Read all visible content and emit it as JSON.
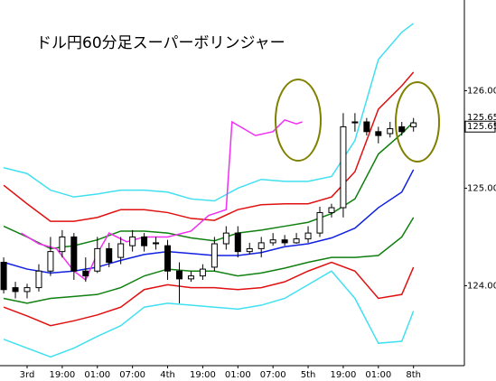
{
  "chart_data": {
    "type": "candlestick",
    "title": "ドル円60分足スーパーボリンジャー",
    "xlim": [
      -4.63,
      74.69
    ],
    "ylim": [
      123.18,
      126.93
    ],
    "xticks": [
      {
        "value": 0,
        "label": "3rd"
      },
      {
        "value": 6,
        "label": "19:00"
      },
      {
        "value": 12,
        "label": "01:00"
      },
      {
        "value": 18,
        "label": "07:00"
      },
      {
        "value": 24,
        "label": "4th"
      },
      {
        "value": 30,
        "label": "19:00"
      },
      {
        "value": 36,
        "label": "01:00"
      },
      {
        "value": 42,
        "label": "07:00"
      },
      {
        "value": 48,
        "label": "5th"
      },
      {
        "value": 54,
        "label": "19:00"
      },
      {
        "value": 60,
        "label": "01:00"
      },
      {
        "value": 66,
        "label": "8th"
      }
    ],
    "yticks": [
      {
        "value": 124,
        "label": "124.00"
      },
      {
        "value": 125,
        "label": "125.00"
      },
      {
        "value": 126,
        "label": "126.00"
      }
    ],
    "price_labels": [
      {
        "value": 125.651,
        "label": "125.651",
        "color": "#e030e0"
      },
      {
        "value": 125.65,
        "label": "125.65",
        "color": "#000000"
      }
    ],
    "candles": {
      "x": [
        -4,
        -2,
        0,
        2,
        4,
        6,
        8,
        10,
        12,
        14,
        16,
        18,
        20,
        22,
        24,
        26,
        28,
        30,
        32,
        34,
        36,
        38,
        40,
        42,
        44,
        46,
        48,
        50,
        52,
        54,
        56,
        58,
        60,
        62,
        64,
        66
      ],
      "open": [
        124.24,
        123.98,
        123.94,
        123.98,
        124.15,
        124.35,
        124.5,
        124.15,
        124.15,
        124.38,
        124.29,
        124.41,
        124.5,
        124.44,
        124.41,
        124.15,
        124.07,
        124.1,
        124.19,
        124.43,
        124.54,
        124.35,
        124.38,
        124.44,
        124.47,
        124.44,
        124.48,
        124.54,
        124.75,
        124.8,
        125.68,
        125.68,
        125.58,
        125.56,
        125.63,
        125.63
      ],
      "high": [
        124.29,
        124.04,
        124.02,
        124.22,
        124.5,
        124.57,
        124.54,
        124.29,
        124.5,
        124.44,
        124.5,
        124.57,
        124.54,
        124.5,
        124.47,
        124.24,
        124.15,
        124.22,
        124.5,
        124.61,
        124.61,
        124.44,
        124.5,
        124.54,
        124.52,
        124.54,
        124.61,
        124.81,
        124.84,
        125.77,
        125.77,
        125.72,
        125.63,
        125.68,
        125.68,
        125.72
      ],
      "low": [
        123.92,
        123.87,
        123.87,
        123.94,
        124.1,
        124.29,
        124.06,
        124.04,
        124.13,
        124.19,
        124.22,
        124.35,
        124.35,
        124.37,
        124.06,
        123.82,
        124.04,
        124.06,
        124.15,
        124.37,
        124.29,
        124.32,
        124.29,
        124.41,
        124.41,
        124.43,
        124.44,
        124.5,
        124.7,
        124.7,
        125.58,
        125.54,
        125.46,
        125.52,
        125.54,
        125.58
      ],
      "close": [
        123.96,
        123.94,
        123.98,
        124.15,
        124.35,
        124.5,
        124.15,
        124.1,
        124.38,
        124.24,
        124.43,
        124.5,
        124.41,
        124.43,
        124.15,
        124.07,
        124.1,
        124.17,
        124.43,
        124.54,
        124.35,
        124.38,
        124.44,
        124.47,
        124.44,
        124.48,
        124.54,
        124.75,
        124.8,
        125.63,
        125.67,
        125.58,
        125.54,
        125.61,
        125.58,
        125.67
      ],
      "up_color": "#ffffff",
      "down_color": "#000000",
      "edge_color": "#000000"
    },
    "series": [
      {
        "color": "#40e0f0",
        "x": [
          -4,
          0,
          4,
          8,
          12,
          16,
          20,
          24,
          28,
          32,
          36,
          40,
          44,
          48,
          52,
          56,
          60,
          64,
          66
        ],
        "values": [
          125.21,
          125.15,
          124.98,
          124.91,
          124.94,
          124.98,
          124.98,
          124.96,
          124.89,
          124.87,
          125.0,
          125.09,
          125.07,
          125.07,
          125.12,
          125.49,
          126.32,
          126.6,
          126.69
        ]
      },
      {
        "color": "#40e0f0",
        "x": [
          -4,
          0,
          4,
          8,
          12,
          16,
          20,
          24,
          28,
          32,
          36,
          40,
          44,
          48,
          52,
          56,
          60,
          64,
          66
        ],
        "values": [
          123.45,
          123.36,
          123.27,
          123.36,
          123.48,
          123.59,
          123.78,
          123.82,
          123.8,
          123.78,
          123.76,
          123.8,
          123.87,
          124.01,
          124.15,
          123.87,
          123.41,
          123.43,
          123.74
        ]
      },
      {
        "color": "#e01010",
        "x": [
          -4,
          0,
          4,
          8,
          12,
          16,
          20,
          24,
          28,
          32,
          36,
          40,
          44,
          48,
          52,
          56,
          60,
          64,
          66
        ],
        "values": [
          125.03,
          124.84,
          124.66,
          124.66,
          124.7,
          124.78,
          124.78,
          124.75,
          124.69,
          124.67,
          124.78,
          124.83,
          124.84,
          124.84,
          124.91,
          125.17,
          125.81,
          126.05,
          126.19
        ]
      },
      {
        "color": "#e01010",
        "x": [
          -4,
          0,
          4,
          8,
          12,
          16,
          20,
          24,
          28,
          32,
          36,
          40,
          44,
          48,
          52,
          56,
          60,
          64,
          66
        ],
        "values": [
          123.78,
          123.69,
          123.59,
          123.64,
          123.7,
          123.78,
          123.96,
          124.01,
          123.98,
          123.98,
          123.96,
          123.98,
          124.04,
          124.15,
          124.24,
          124.15,
          123.87,
          123.91,
          124.19
        ]
      },
      {
        "color": "#108010",
        "x": [
          -4,
          0,
          4,
          8,
          12,
          16,
          20,
          24,
          28,
          32,
          36,
          40,
          44,
          48,
          52,
          56,
          60,
          64,
          66
        ],
        "values": [
          124.61,
          124.5,
          124.38,
          124.41,
          124.47,
          124.56,
          124.56,
          124.54,
          124.49,
          124.46,
          124.54,
          124.57,
          124.61,
          124.65,
          124.74,
          124.89,
          125.35,
          125.56,
          125.68
        ]
      },
      {
        "color": "#108010",
        "x": [
          -4,
          0,
          4,
          8,
          12,
          16,
          20,
          24,
          28,
          32,
          36,
          40,
          44,
          48,
          52,
          56,
          60,
          64,
          66
        ],
        "values": [
          123.87,
          123.82,
          123.87,
          123.89,
          123.91,
          123.98,
          124.1,
          124.17,
          124.15,
          124.15,
          124.1,
          124.13,
          124.18,
          124.24,
          124.29,
          124.29,
          124.31,
          124.5,
          124.7
        ]
      },
      {
        "color": "#1020e0",
        "x": [
          -4,
          0,
          4,
          8,
          12,
          16,
          20,
          24,
          28,
          32,
          36,
          40,
          44,
          48,
          52,
          56,
          60,
          64,
          66
        ],
        "values": [
          124.24,
          124.17,
          124.13,
          124.15,
          124.19,
          124.26,
          124.32,
          124.35,
          124.33,
          124.31,
          124.31,
          124.34,
          124.4,
          124.43,
          124.49,
          124.59,
          124.8,
          124.96,
          125.19
        ]
      },
      {
        "color": "#f030f0",
        "x": [
          -1,
          2,
          5,
          8,
          10,
          12,
          14,
          17,
          20,
          24,
          28,
          31,
          34,
          35,
          39,
          42,
          44,
          46,
          47
        ],
        "values": [
          124.54,
          124.43,
          124.38,
          124.15,
          124.06,
          124.33,
          124.54,
          124.45,
          124.5,
          124.5,
          124.56,
          124.72,
          124.78,
          125.68,
          125.54,
          125.58,
          125.7,
          125.66,
          125.68
        ]
      }
    ]
  }
}
